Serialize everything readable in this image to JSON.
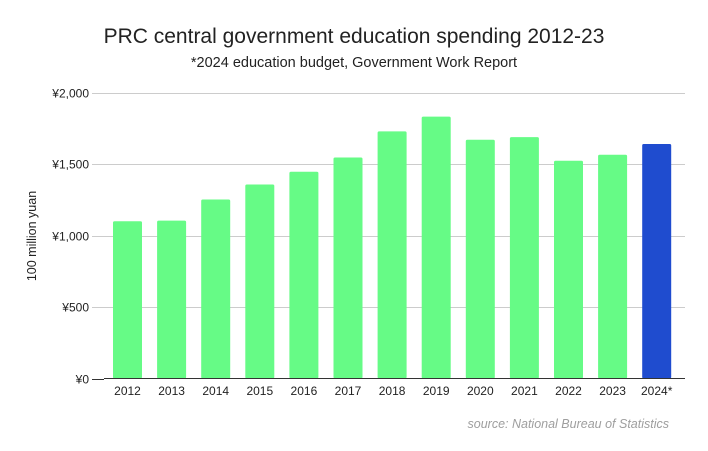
{
  "chart_data": {
    "type": "bar",
    "title": "PRC central government education spending 2012-23",
    "subtitle": "*2024 education budget, Government Work Report",
    "xlabel": "",
    "ylabel": "100 million yuan",
    "ylim": [
      0,
      2000
    ],
    "yticks": [
      0,
      500,
      1000,
      1500,
      2000
    ],
    "ytick_labels": [
      "¥0",
      "¥500",
      "¥1,000",
      "¥1,500",
      "¥2,000"
    ],
    "grid": true,
    "legend": "none",
    "categories": [
      "2012",
      "2013",
      "2014",
      "2015",
      "2016",
      "2017",
      "2018",
      "2019",
      "2020",
      "2021",
      "2022",
      "2023",
      "2024*"
    ],
    "values": [
      1101,
      1106,
      1254,
      1359,
      1448,
      1548,
      1731,
      1835,
      1673,
      1691,
      1526,
      1568,
      1643
    ],
    "colors": {
      "default": "#66fb86",
      "highlight": "#1f4ccf",
      "gridline": "#cccccc",
      "axis": "#333333"
    },
    "highlight_index": 12,
    "source": "source: National Bureau of Statistics"
  }
}
